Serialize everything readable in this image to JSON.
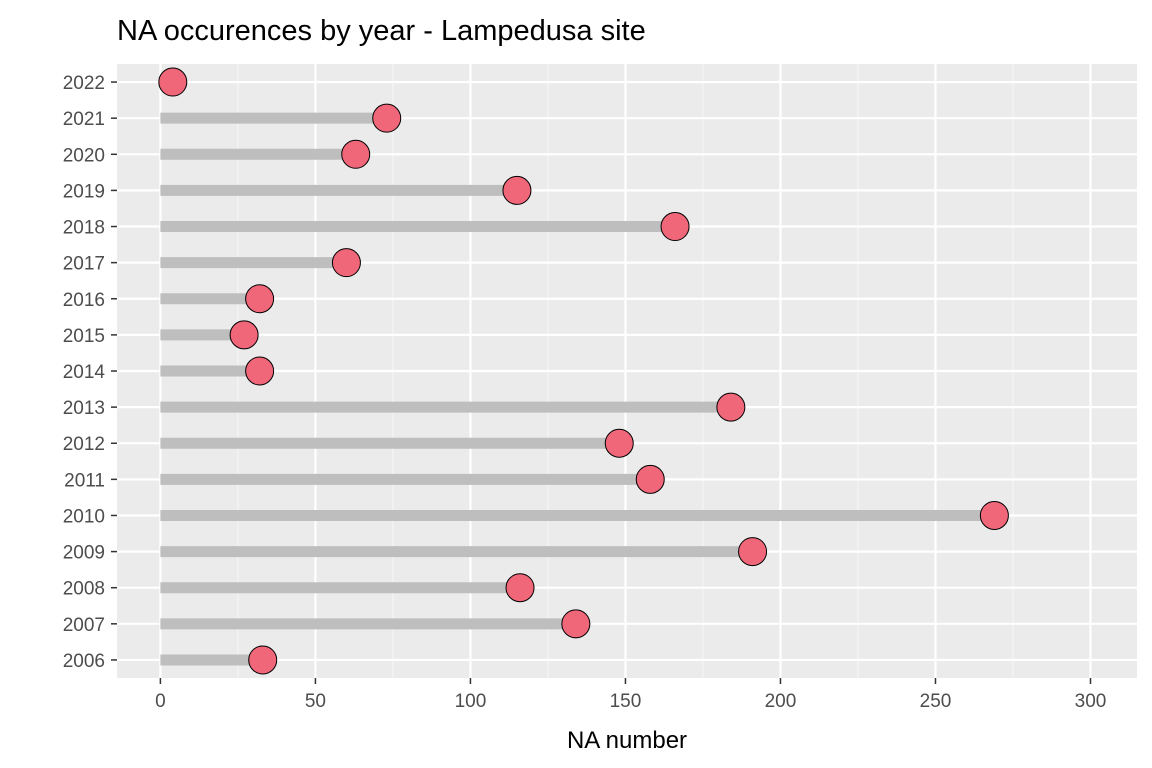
{
  "chart_data": {
    "type": "lollipop",
    "title": "NA occurences by year - Lampedusa site",
    "xlabel": "NA number",
    "ylabel": "",
    "xlim": [
      -14,
      315
    ],
    "x_ticks": [
      0,
      50,
      100,
      150,
      200,
      250,
      300
    ],
    "x_tick_labels": [
      "0",
      "50",
      "100",
      "150",
      "200",
      "250",
      "300"
    ],
    "categories": [
      "2006",
      "2007",
      "2008",
      "2009",
      "2010",
      "2011",
      "2012",
      "2013",
      "2014",
      "2015",
      "2016",
      "2017",
      "2018",
      "2019",
      "2020",
      "2021",
      "2022"
    ],
    "values": [
      33,
      134,
      116,
      191,
      269,
      158,
      148,
      184,
      32,
      27,
      32,
      60,
      166,
      115,
      63,
      73,
      4
    ],
    "grid": true,
    "legend": "none",
    "colors": {
      "panel_background": "#ebebeb",
      "grid_major": "#ffffff",
      "grid_minor": "#f5f5f5",
      "stem": "#bebebe",
      "point_fill": "#f0677a",
      "point_stroke": "#000000"
    }
  }
}
